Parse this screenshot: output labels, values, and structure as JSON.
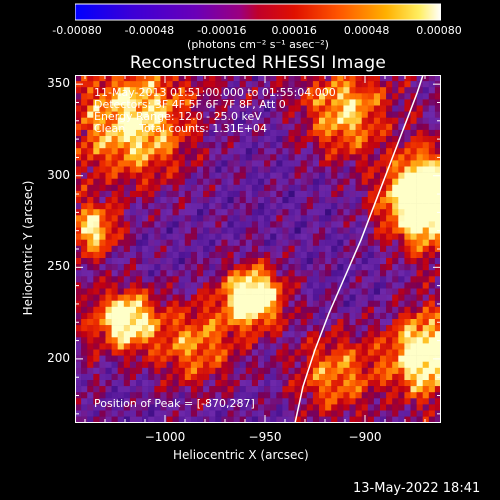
{
  "colorbar": {
    "tick_labels": [
      "-0.00080",
      "-0.00048",
      "-0.00016",
      "0.00016",
      "0.00048",
      "0.00080"
    ],
    "unit_label": "(photons cm⁻² s⁻¹ asec⁻²)"
  },
  "info": {
    "time_range": "11-May-2013 01:51:00.000 to 01:55:04.000",
    "detectors": "Detectors: 3F 4F 5F 6F 7F 8F, Att 0",
    "energy_range": "Energy Range: 12.0 - 25.0 keV",
    "clean_counts": "Clean    Total counts: 1.31E+04",
    "peak_position": "Position of Peak = [-870,287]"
  },
  "footer": {
    "date": "13-May-2022 18:41"
  },
  "chart_data": {
    "type": "heatmap",
    "title": "Reconstructed RHESSI Image",
    "xlabel": "Heliocentric X (arcsec)",
    "ylabel": "Heliocentric Y (arcsec)",
    "xlim": [
      -1045,
      -862
    ],
    "ylim": [
      165,
      355
    ],
    "x_ticks": [
      -1000,
      -950,
      -900
    ],
    "x_tick_labels": [
      "−1000",
      "−950",
      "−900"
    ],
    "y_ticks": [
      200,
      250,
      300,
      350
    ],
    "y_tick_labels": [
      "200",
      "250",
      "300",
      "350"
    ],
    "zlim": [
      -0.0008,
      0.0008
    ],
    "peak": [
      -870,
      287
    ],
    "limb_curve": [
      [
        -935,
        165
      ],
      [
        -931,
        185
      ],
      [
        -925,
        205
      ],
      [
        -918,
        225
      ],
      [
        -910,
        245
      ],
      [
        -902,
        265
      ],
      [
        -895,
        285
      ],
      [
        -888,
        305
      ],
      [
        -881,
        325
      ],
      [
        -874,
        345
      ],
      [
        -871,
        355
      ]
    ],
    "grid": false
  }
}
